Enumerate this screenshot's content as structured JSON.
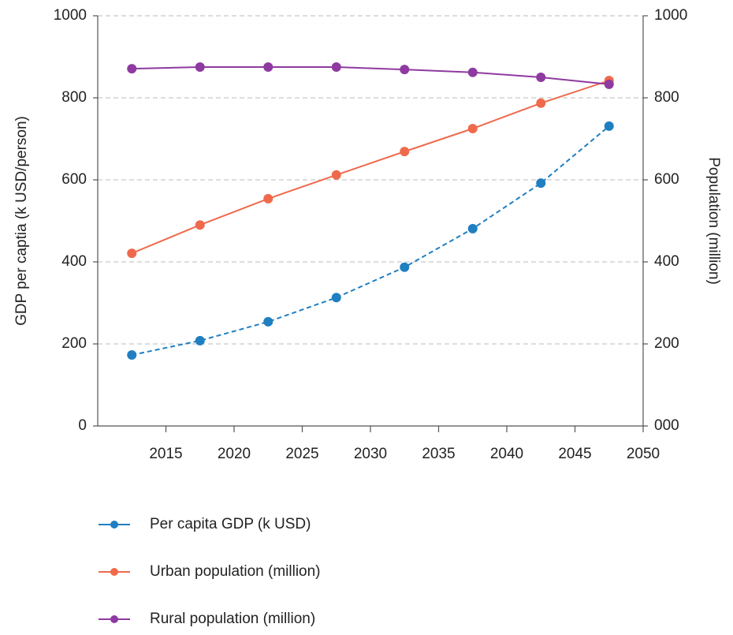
{
  "chart_data": {
    "type": "line",
    "x": [
      2012.5,
      2017.5,
      2022.5,
      2027.5,
      2032.5,
      2037.5,
      2042.5,
      2047.5
    ],
    "xlim": [
      2010,
      2050
    ],
    "xticks": [
      2015,
      2020,
      2025,
      2030,
      2035,
      2040,
      2045,
      2050
    ],
    "ylim": [
      0,
      1000
    ],
    "yticks": [
      0,
      200,
      400,
      600,
      800,
      1000
    ],
    "y2lim": [
      0,
      1000
    ],
    "y2ticks": [
      {
        "value": 0,
        "label": "000"
      },
      200,
      400,
      600,
      800,
      1000
    ],
    "ylabel": "GDP per captia (k USD/person)",
    "y2label": "Population (million)",
    "grid": true,
    "legend": "bottom",
    "series": [
      {
        "name": "Per capita GDP (k USD)",
        "color": "#1f7fc1",
        "dashed": true,
        "values": [
          173,
          208,
          254,
          313,
          387,
          481,
          592,
          731
        ]
      },
      {
        "name": "Urban population (million)",
        "color": "#ef6a4c",
        "axis": "y2",
        "values": [
          421,
          490,
          554,
          612,
          669,
          725,
          787,
          842
        ]
      },
      {
        "name": "Rural population (million)",
        "color": "#8e3aa0",
        "axis": "y2",
        "values": [
          871,
          875,
          875,
          875,
          869,
          862,
          850,
          833
        ]
      }
    ]
  }
}
